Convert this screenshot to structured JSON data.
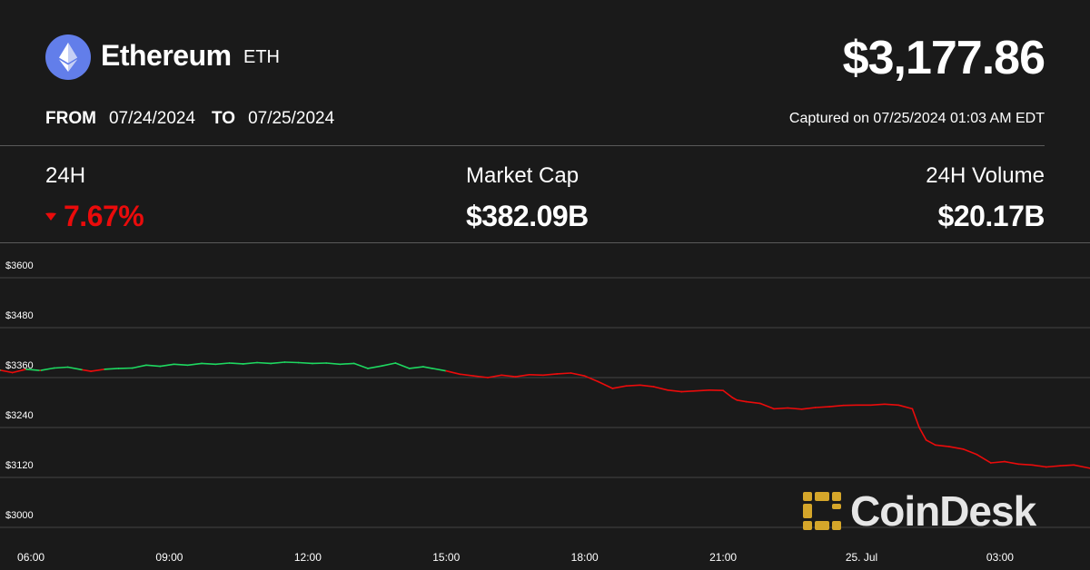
{
  "header": {
    "coin_name": "Ethereum",
    "coin_symbol": "ETH",
    "price": "$3,177.86",
    "logo_icon": "ethereum-diamond-icon",
    "logo_color": "#627eea"
  },
  "range": {
    "from_label": "FROM",
    "from_date": "07/24/2024",
    "to_label": "TO",
    "to_date": "07/25/2024",
    "captured": "Captured on 07/25/2024 01:03 AM EDT"
  },
  "stats": {
    "change_label": "24H",
    "change_value": "7.67%",
    "change_direction": "down",
    "market_cap_label": "Market Cap",
    "market_cap_value": "$382.09B",
    "volume_label": "24H Volume",
    "volume_value": "$20.17B"
  },
  "colors": {
    "background": "#1a1a1a",
    "up": "#1ed760",
    "down": "#ea0b0b",
    "gridline": "#444444",
    "brand": "#d5a62a"
  },
  "watermark": {
    "text": "CoinDesk",
    "icon": "coindesk-logo-icon"
  },
  "chart_data": {
    "type": "line",
    "title": "",
    "xlabel": "",
    "ylabel": "",
    "reference_price": 3378,
    "ylim": [
      3000,
      3600
    ],
    "y_ticks": [
      3000,
      3120,
      3240,
      3360,
      3480,
      3600
    ],
    "y_tick_labels": [
      "$3000",
      "$3120",
      "$3240",
      "$3360",
      "$3480",
      "$3600"
    ],
    "x_tick_labels": [
      "06:00",
      "09:00",
      "12:00",
      "15:00",
      "18:00",
      "21:00",
      "25. Jul",
      "03:00"
    ],
    "x_tick_hours": [
      6,
      9,
      12,
      15,
      18,
      21,
      24,
      27
    ],
    "x_range_hours": [
      5.33,
      28.95
    ],
    "grid": true,
    "legend": "none",
    "series": [
      {
        "x_hours": [
          5.33,
          5.6,
          5.9,
          6.2,
          6.5,
          6.8,
          7.1,
          7.3,
          7.6,
          7.9,
          8.2,
          8.5,
          8.8,
          9.1,
          9.4,
          9.7,
          10.0,
          10.3,
          10.6,
          10.9,
          11.2,
          11.5,
          11.8,
          12.1,
          12.4,
          12.7,
          13.0,
          13.3,
          13.6,
          13.9,
          14.2,
          14.5,
          14.7,
          15.0,
          15.3,
          15.6,
          15.9,
          16.2,
          16.5,
          16.8,
          17.1,
          17.4,
          17.7,
          18.0,
          18.3,
          18.6,
          18.9,
          19.2,
          19.5,
          19.8,
          20.1,
          20.4,
          20.7,
          21.0,
          21.2,
          21.3,
          21.5,
          21.8,
          22.1,
          22.4,
          22.7,
          23.0,
          23.3,
          23.6,
          23.9,
          24.2,
          24.5,
          24.8,
          25.1,
          25.25,
          25.4,
          25.6,
          25.9,
          26.2,
          26.5,
          26.8,
          27.1,
          27.4,
          27.7,
          28.0,
          28.3,
          28.6,
          28.95
        ],
        "values": [
          3378,
          3372,
          3380,
          3377,
          3383,
          3385,
          3379,
          3375,
          3380,
          3382,
          3383,
          3390,
          3387,
          3392,
          3390,
          3394,
          3392,
          3395,
          3393,
          3396,
          3394,
          3397,
          3396,
          3394,
          3395,
          3392,
          3394,
          3382,
          3388,
          3395,
          3382,
          3386,
          3382,
          3376,
          3368,
          3364,
          3360,
          3366,
          3362,
          3367,
          3366,
          3369,
          3371,
          3364,
          3350,
          3334,
          3340,
          3342,
          3338,
          3330,
          3326,
          3328,
          3330,
          3329,
          3312,
          3306,
          3302,
          3298,
          3285,
          3287,
          3284,
          3288,
          3290,
          3293,
          3294,
          3294,
          3296,
          3294,
          3285,
          3240,
          3210,
          3198,
          3194,
          3188,
          3175,
          3155,
          3158,
          3152,
          3150,
          3145,
          3148,
          3150,
          3142
        ]
      }
    ]
  }
}
